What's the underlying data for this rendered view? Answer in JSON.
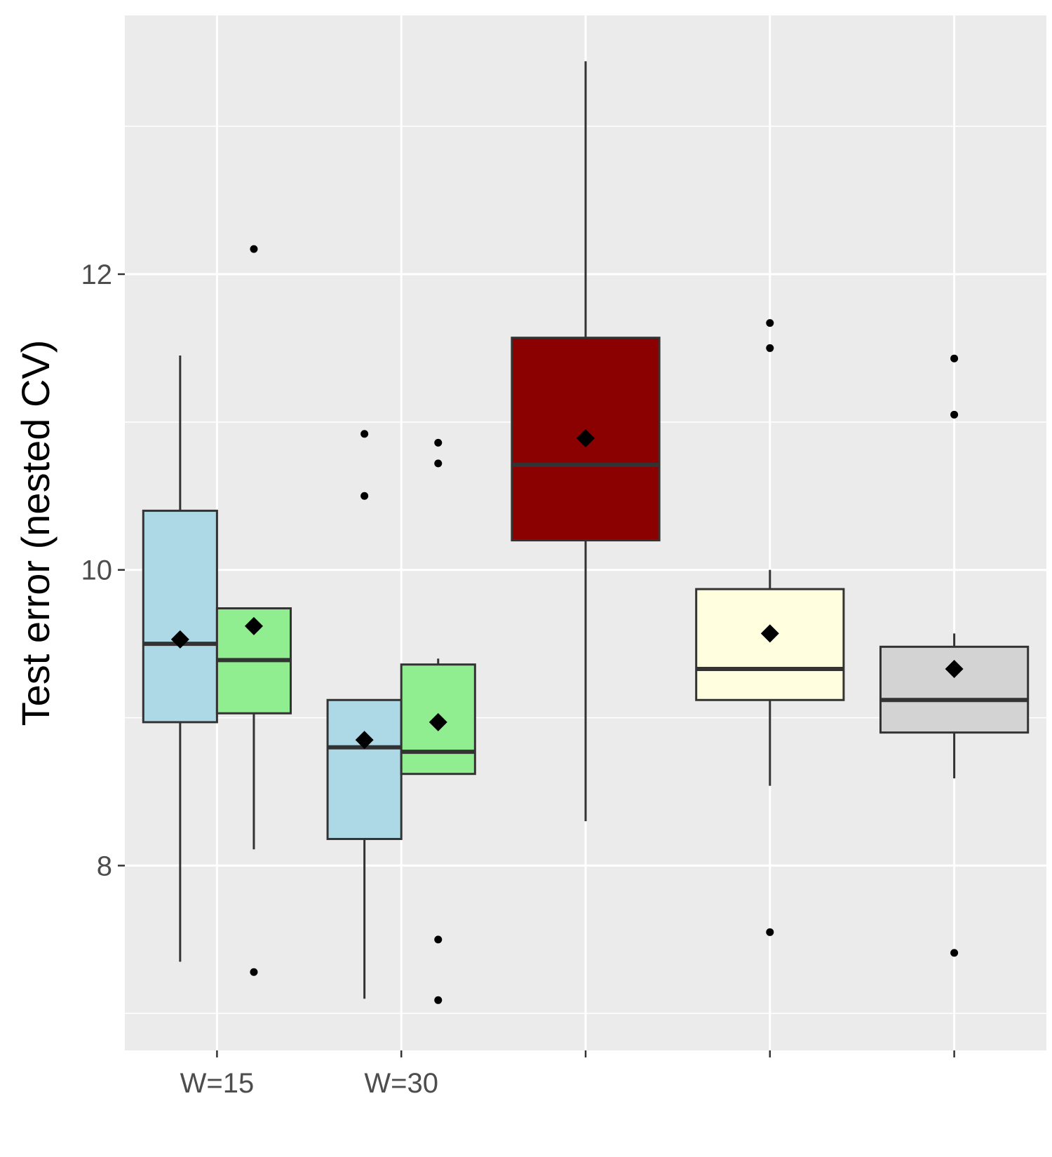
{
  "chart_data": {
    "type": "box",
    "ylabel": "Test error (nested CV)",
    "xlabel": "",
    "ylim": [
      6.75,
      13.75
    ],
    "y_ticks": [
      8,
      10,
      12
    ],
    "y_tick_labels": [
      "8",
      "10",
      "12"
    ],
    "grid": true,
    "legend": "none",
    "panel_background": "#ebebeb",
    "box_stroke": "#333333",
    "categories": [
      {
        "label": "W=15"
      },
      {
        "label": "W=30"
      },
      {
        "label": ""
      },
      {
        "label": ""
      },
      {
        "label": ""
      }
    ],
    "boxes": [
      {
        "category": 0,
        "position": -0.2,
        "fill": "#add8e6",
        "q1": 8.97,
        "median": 9.5,
        "q3": 10.4,
        "whisker_low": 7.35,
        "whisker_high": 11.45,
        "mean": 9.53,
        "outliers": []
      },
      {
        "category": 0,
        "position": 0.2,
        "fill": "#90ee90",
        "q1": 9.03,
        "median": 9.39,
        "q3": 9.74,
        "whisker_low": 8.11,
        "whisker_high": 9.74,
        "mean": 9.62,
        "outliers": [
          12.17,
          7.28
        ]
      },
      {
        "category": 1,
        "position": -0.2,
        "fill": "#add8e6",
        "q1": 8.18,
        "median": 8.8,
        "q3": 9.12,
        "whisker_low": 7.1,
        "whisker_high": 9.12,
        "mean": 8.85,
        "outliers": [
          10.92,
          10.5
        ]
      },
      {
        "category": 1,
        "position": 0.2,
        "fill": "#90ee90",
        "q1": 8.62,
        "median": 8.77,
        "q3": 9.36,
        "whisker_low": 8.62,
        "whisker_high": 9.4,
        "mean": 8.97,
        "outliers": [
          10.86,
          10.72,
          7.5,
          7.09
        ]
      },
      {
        "category": 2,
        "position": 0,
        "fill": "#8b0000",
        "q1": 10.2,
        "median": 10.71,
        "q3": 11.57,
        "whisker_low": 8.3,
        "whisker_high": 13.44,
        "mean": 10.89,
        "outliers": []
      },
      {
        "category": 3,
        "position": 0,
        "fill": "#ffffe0",
        "q1": 9.12,
        "median": 9.33,
        "q3": 9.87,
        "whisker_low": 8.54,
        "whisker_high": 10.0,
        "mean": 9.57,
        "outliers": [
          11.67,
          11.5,
          7.55
        ]
      },
      {
        "category": 4,
        "position": 0,
        "fill": "#d3d3d3",
        "q1": 8.9,
        "median": 9.12,
        "q3": 9.48,
        "whisker_low": 8.59,
        "whisker_high": 9.57,
        "mean": 9.33,
        "outliers": [
          11.43,
          11.05,
          7.41
        ]
      }
    ]
  }
}
